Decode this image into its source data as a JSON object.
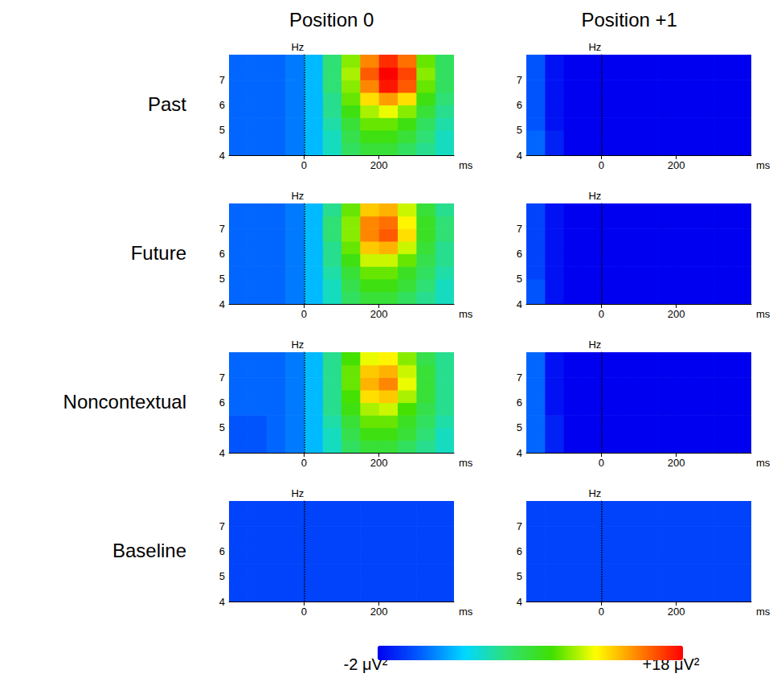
{
  "chart_data": {
    "type": "heatmap",
    "columns": [
      "Position 0",
      "Position +1"
    ],
    "rows": [
      "Past",
      "Future",
      "Noncontextual",
      "Baseline"
    ],
    "x_label": "ms",
    "y_label": "Hz",
    "xlim": [
      -200,
      400
    ],
    "xticks": [
      0,
      200
    ],
    "ylim": [
      4,
      8
    ],
    "yticks": [
      4,
      5,
      6,
      7
    ],
    "onset": 0,
    "x": [
      -175,
      -125,
      -75,
      -25,
      25,
      75,
      125,
      175,
      225,
      275,
      325,
      375
    ],
    "y": [
      4.25,
      4.75,
      5.25,
      5.75,
      6.25,
      6.75,
      7.25,
      7.75
    ],
    "colorbar": {
      "range": [
        -2,
        18
      ],
      "ticks": [
        {
          "value": -2,
          "label": "-2 μV²"
        },
        {
          "value": 18,
          "label": "+18 μV²"
        }
      ]
    },
    "panels": [
      {
        "row": "Past",
        "column": "Position 0",
        "cells": [
          [
            1,
            1,
            1,
            1.5,
            3,
            5,
            7,
            8,
            8,
            7,
            6,
            5
          ],
          [
            1,
            1,
            1,
            1.5,
            3,
            5,
            7.5,
            9,
            9,
            8,
            6.5,
            5
          ],
          [
            1,
            1,
            1,
            1.5,
            3,
            5.5,
            8,
            10,
            10,
            9,
            7,
            5.5
          ],
          [
            1,
            1,
            1,
            1.5,
            3,
            6,
            9,
            11,
            12,
            10.5,
            8,
            6
          ],
          [
            1,
            1,
            1,
            1.5,
            3,
            6,
            10,
            13,
            14.5,
            13,
            9,
            6.5
          ],
          [
            1,
            1,
            1,
            1.5,
            3,
            6.5,
            10.5,
            15,
            17.5,
            16,
            10,
            7
          ],
          [
            1,
            1,
            1,
            1.5,
            3,
            6.5,
            11,
            16,
            18,
            16.5,
            10.5,
            7
          ],
          [
            1,
            1,
            1,
            1.5,
            3,
            6.5,
            10.5,
            15,
            17,
            15.5,
            10,
            7
          ]
        ]
      },
      {
        "row": "Past",
        "column": "Position +1",
        "cells": [
          [
            1,
            -1,
            -2,
            -2,
            -2,
            -2,
            -2,
            -2,
            -2,
            -2,
            -2,
            -2
          ],
          [
            1,
            -1,
            -2,
            -2,
            -2,
            -2,
            -2,
            -2,
            -2,
            -2,
            -2,
            -2
          ],
          [
            0.5,
            -1.5,
            -2,
            -2,
            -2,
            -2,
            -2,
            -2,
            -2,
            -2,
            -2,
            -2
          ],
          [
            0.5,
            -1.5,
            -2,
            -2,
            -2,
            -2,
            -2,
            -2,
            -2,
            -2,
            -2,
            -2
          ],
          [
            0.5,
            -1.5,
            -2,
            -2,
            -2,
            -2,
            -2,
            -2,
            -2,
            -2,
            -2,
            -2
          ],
          [
            0.5,
            -1.5,
            -2,
            -2,
            -2,
            -2,
            -2,
            -2,
            -2,
            -2,
            -2,
            -2
          ],
          [
            0.5,
            -1.5,
            -2,
            -2,
            -2,
            -2,
            -2,
            -2,
            -2,
            -2,
            -2,
            -2
          ],
          [
            0.5,
            -1.5,
            -2,
            -2,
            -2,
            -2,
            -2,
            -2,
            -2,
            -2,
            -2,
            -2
          ]
        ]
      },
      {
        "row": "Future",
        "column": "Position 0",
        "cells": [
          [
            1,
            1,
            1,
            1.5,
            3,
            5,
            7,
            8,
            8,
            7,
            6,
            5
          ],
          [
            1,
            1,
            1,
            1.5,
            3,
            5,
            7.5,
            9,
            9,
            8,
            6.5,
            5
          ],
          [
            1,
            1,
            1,
            1.5,
            3,
            5.5,
            8,
            10,
            10,
            8.5,
            7,
            5.5
          ],
          [
            1,
            1,
            1,
            1.5,
            3,
            6,
            9,
            11.5,
            11.5,
            10,
            7.5,
            6
          ],
          [
            1,
            1,
            1,
            1.5,
            3,
            6,
            10,
            13.5,
            14,
            11.5,
            8,
            6
          ],
          [
            1,
            1,
            1,
            1.5,
            3,
            6.5,
            10.5,
            15,
            16,
            13,
            8.5,
            6.5
          ],
          [
            1,
            1,
            1,
            1.5,
            3,
            6.5,
            10.5,
            15,
            15.5,
            12.5,
            8.5,
            6.5
          ],
          [
            1,
            1,
            1,
            1.5,
            3,
            6,
            10,
            13.5,
            14,
            11.5,
            8,
            6
          ]
        ]
      },
      {
        "row": "Future",
        "column": "Position +1",
        "cells": [
          [
            0.5,
            -1.5,
            -2,
            -2,
            -2,
            -2,
            -2,
            -2,
            -2,
            -2,
            -2,
            -2
          ],
          [
            0.5,
            -1.5,
            -2,
            -2,
            -2,
            -2,
            -2,
            -2,
            -2,
            -2,
            -2,
            -2
          ],
          [
            0,
            -1.5,
            -2,
            -2,
            -2,
            -2,
            -2,
            -2,
            -2,
            -2,
            -2,
            -2
          ],
          [
            0,
            -1.5,
            -2,
            -2,
            -2,
            -2,
            -2,
            -2,
            -2,
            -2,
            -2,
            -2
          ],
          [
            0,
            -1.5,
            -2,
            -2,
            -2,
            -2,
            -2,
            -2,
            -2,
            -2,
            -2,
            -2
          ],
          [
            0,
            -1.5,
            -2,
            -2,
            -2,
            -2,
            -2,
            -2,
            -2,
            -2,
            -2,
            -2
          ],
          [
            0,
            -1.5,
            -2,
            -2,
            -2,
            -2,
            -2,
            -2,
            -2,
            -2,
            -2,
            -2
          ],
          [
            0,
            -1.5,
            -2,
            -2,
            -2,
            -2,
            -2,
            -2,
            -2,
            -2,
            -2,
            -2
          ]
        ]
      },
      {
        "row": "Noncontextual",
        "column": "Position 0",
        "cells": [
          [
            0.5,
            0.5,
            1,
            1.5,
            3,
            5,
            7,
            8,
            8,
            7,
            6,
            5
          ],
          [
            0.5,
            0.5,
            1,
            1.5,
            3,
            5,
            7.5,
            9,
            9,
            8,
            6.5,
            5
          ],
          [
            0.5,
            0.5,
            1,
            1.5,
            3,
            5.5,
            8,
            10,
            10,
            8.5,
            7,
            5.5
          ],
          [
            1,
            1,
            1,
            1.5,
            3,
            6,
            9,
            11,
            11.5,
            9.5,
            7.5,
            6
          ],
          [
            1,
            1,
            1,
            1.5,
            3,
            6,
            9.5,
            13,
            13.5,
            11,
            8,
            6
          ],
          [
            1,
            1,
            1,
            1.5,
            3,
            6,
            10,
            14,
            15,
            12,
            8,
            6
          ],
          [
            1,
            1,
            1,
            1.5,
            3,
            6,
            10,
            13.5,
            14,
            11.5,
            8,
            6
          ],
          [
            1,
            1,
            1,
            1.5,
            3,
            6,
            9.5,
            12,
            12.5,
            10.5,
            7.5,
            6
          ]
        ]
      },
      {
        "row": "Noncontextual",
        "column": "Position +1",
        "cells": [
          [
            1,
            -1,
            -2,
            -2,
            -2,
            -2,
            -2,
            -2,
            -2,
            -2,
            -2,
            -2
          ],
          [
            1,
            -1,
            -2,
            -2,
            -2,
            -2,
            -2,
            -2,
            -2,
            -2,
            -2,
            -2
          ],
          [
            1,
            -1,
            -2,
            -2,
            -2,
            -2,
            -2,
            -2,
            -2,
            -2,
            -2,
            -2
          ],
          [
            1,
            -1.5,
            -2,
            -2,
            -2,
            -2,
            -2,
            -2,
            -2,
            -2,
            -2,
            -2
          ],
          [
            1,
            -1.5,
            -2,
            -2,
            -2,
            -2,
            -2,
            -2,
            -2,
            -2,
            -2,
            -2
          ],
          [
            1,
            -1.5,
            -2,
            -2,
            -2,
            -2,
            -2,
            -2,
            -2,
            -2,
            -2,
            -2
          ],
          [
            1,
            -1.5,
            -2,
            -2,
            -2,
            -2,
            -2,
            -2,
            -2,
            -2,
            -2,
            -2
          ],
          [
            1,
            -1.5,
            -2,
            -2,
            -2,
            -2,
            -2,
            -2,
            -2,
            -2,
            -2,
            -2
          ]
        ]
      },
      {
        "row": "Baseline",
        "column": "Position 0",
        "cells": [
          [
            0,
            0,
            0,
            0,
            0,
            0,
            0,
            0,
            0,
            0,
            0,
            0
          ],
          [
            0,
            0,
            0,
            0,
            0,
            0,
            0,
            0,
            0,
            0,
            0,
            0
          ],
          [
            0,
            0,
            0,
            0,
            0,
            0,
            0,
            0,
            0,
            0,
            0,
            0
          ],
          [
            0,
            0,
            0,
            0,
            0,
            0,
            0,
            0,
            0,
            0,
            0,
            0
          ],
          [
            0,
            0,
            0,
            0,
            0,
            0,
            0,
            0,
            0,
            0,
            0,
            0
          ],
          [
            0,
            0,
            0,
            0,
            0,
            0,
            0,
            0,
            0,
            0,
            0,
            0
          ],
          [
            0,
            0,
            0,
            0,
            0,
            0,
            0,
            0,
            0,
            0,
            0,
            0
          ],
          [
            0,
            0,
            0,
            0,
            0,
            0,
            0,
            0,
            0,
            0,
            0,
            0
          ]
        ]
      },
      {
        "row": "Baseline",
        "column": "Position +1",
        "cells": [
          [
            0,
            0,
            0,
            0,
            0,
            0,
            0,
            0,
            0,
            0,
            0,
            0
          ],
          [
            0,
            0,
            0,
            0,
            0,
            0,
            0,
            0,
            0,
            0,
            0,
            0
          ],
          [
            0,
            0,
            0,
            0,
            0,
            0,
            0,
            0,
            0,
            0,
            0,
            0
          ],
          [
            0,
            0,
            0,
            0,
            0,
            0,
            0,
            0,
            0,
            0,
            0,
            0
          ],
          [
            0,
            0,
            0,
            0,
            0,
            0,
            0,
            0,
            0,
            0,
            0,
            0
          ],
          [
            0,
            0,
            0,
            0,
            0,
            0,
            0,
            0,
            0,
            0,
            0,
            0
          ],
          [
            0,
            0,
            0,
            0,
            0,
            0,
            0,
            0,
            0,
            0,
            0,
            0
          ],
          [
            0,
            0,
            0,
            0,
            0,
            0,
            0,
            0,
            0,
            0,
            0,
            0
          ]
        ]
      }
    ]
  }
}
